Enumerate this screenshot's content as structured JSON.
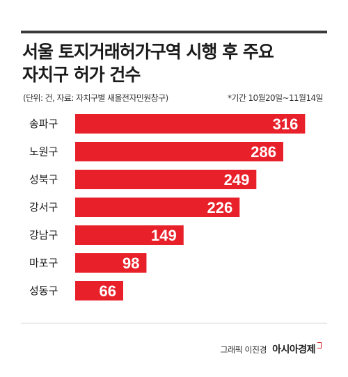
{
  "header": {
    "title_line1": "서울 토지거래허가구역 시행 후 주요",
    "title_line2": "자치구 허가 건수",
    "source_note": "(단위: 건, 자료: 자치구별 새올전자민원창구)",
    "period_note": "*기간 10월20일~11월14일"
  },
  "footer": {
    "credit_person": "그래픽 이진경",
    "credit_brand": "아시아경제"
  },
  "colors": {
    "bar": "#e8202a",
    "text": "#1a1a1a",
    "value_label": "#ffffff"
  },
  "chart_data": {
    "type": "bar",
    "orientation": "horizontal",
    "categories": [
      "송파구",
      "노원구",
      "성북구",
      "강서구",
      "강남구",
      "마포구",
      "성동구"
    ],
    "values": [
      316,
      286,
      249,
      226,
      149,
      98,
      66
    ],
    "xlim": [
      0,
      330
    ],
    "grid": false,
    "legend": "none"
  }
}
